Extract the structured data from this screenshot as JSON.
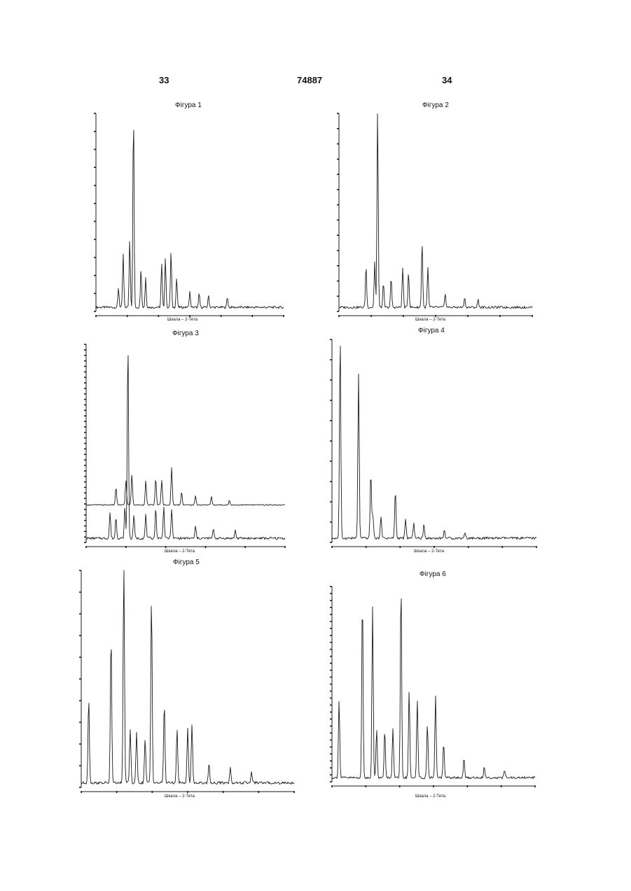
{
  "header": {
    "left_page": "33",
    "patent_number": "74887",
    "right_page": "34"
  },
  "figures": [
    {
      "id": "fig1",
      "title": "Фігура 1",
      "axis_label": "Шкала – 2-Тета"
    },
    {
      "id": "fig2",
      "title": "Фігура 2",
      "axis_label": "Шкала – 2-Тета"
    },
    {
      "id": "fig3",
      "title": "Фігура 3",
      "axis_label": "Шкала – 2-Тета"
    },
    {
      "id": "fig4",
      "title": "Фігура 4",
      "axis_label": "Шкала – 2-Тета"
    },
    {
      "id": "fig5",
      "title": "Фігура 5",
      "axis_label": "Шкала – 2-Тета"
    },
    {
      "id": "fig6",
      "title": "Фігура 6",
      "axis_label": "Шкала – 2-Тета"
    }
  ],
  "chart_data": [
    {
      "type": "line",
      "title": "Фігура 1",
      "xlabel": "Шкала – 2-Тета",
      "ylabel": "",
      "series": [
        {
          "peaks_rel": [
            [
              0.12,
              0.1
            ],
            [
              0.145,
              0.27
            ],
            [
              0.18,
              0.35
            ],
            [
              0.2,
              1.0
            ],
            [
              0.24,
              0.2
            ],
            [
              0.265,
              0.15
            ],
            [
              0.35,
              0.22
            ],
            [
              0.37,
              0.25
            ],
            [
              0.4,
              0.28
            ],
            [
              0.43,
              0.15
            ],
            [
              0.5,
              0.08
            ],
            [
              0.55,
              0.07
            ],
            [
              0.6,
              0.06
            ],
            [
              0.7,
              0.05
            ]
          ]
        }
      ]
    },
    {
      "type": "line",
      "title": "Фігура 2",
      "xlabel": "Шкала – 2-Тета",
      "ylabel": "",
      "series": [
        {
          "peaks_rel": [
            [
              0.14,
              0.21
            ],
            [
              0.185,
              0.23
            ],
            [
              0.2,
              1.0
            ],
            [
              0.23,
              0.12
            ],
            [
              0.27,
              0.15
            ],
            [
              0.33,
              0.2
            ],
            [
              0.36,
              0.18
            ],
            [
              0.43,
              0.33
            ],
            [
              0.46,
              0.2
            ],
            [
              0.55,
              0.07
            ],
            [
              0.65,
              0.05
            ],
            [
              0.72,
              0.04
            ]
          ]
        }
      ]
    },
    {
      "type": "line",
      "title": "Фігура 3",
      "xlabel": "Шкала – 2-Тета",
      "ylabel": "",
      "series": [
        {
          "peaks_rel": [
            [
              0.15,
              0.2
            ],
            [
              0.2,
              0.28
            ],
            [
              0.23,
              0.35
            ],
            [
              0.3,
              0.27
            ],
            [
              0.35,
              0.3
            ],
            [
              0.38,
              0.28
            ],
            [
              0.43,
              0.42
            ],
            [
              0.48,
              0.15
            ],
            [
              0.55,
              0.1
            ],
            [
              0.63,
              0.09
            ],
            [
              0.72,
              0.05
            ]
          ]
        },
        {
          "peaks_rel": [
            [
              0.12,
              0.13
            ],
            [
              0.15,
              0.11
            ],
            [
              0.195,
              0.16
            ],
            [
              0.21,
              1.0
            ],
            [
              0.24,
              0.12
            ],
            [
              0.3,
              0.12
            ],
            [
              0.35,
              0.15
            ],
            [
              0.39,
              0.16
            ],
            [
              0.43,
              0.15
            ],
            [
              0.55,
              0.06
            ],
            [
              0.64,
              0.05
            ],
            [
              0.75,
              0.04
            ]
          ]
        }
      ]
    },
    {
      "type": "line",
      "title": "Фігура 4",
      "xlabel": "Шкала – 2-Тета",
      "ylabel": "",
      "series": [
        {
          "peaks_rel": [
            [
              0.04,
              1.0
            ],
            [
              0.13,
              0.81
            ],
            [
              0.19,
              0.33
            ],
            [
              0.2,
              0.12
            ],
            [
              0.24,
              0.11
            ],
            [
              0.31,
              0.24
            ],
            [
              0.36,
              0.09
            ],
            [
              0.4,
              0.08
            ],
            [
              0.45,
              0.07
            ],
            [
              0.55,
              0.04
            ],
            [
              0.65,
              0.03
            ]
          ]
        }
      ]
    },
    {
      "type": "line",
      "title": "Фігура 5",
      "xlabel": "Шкала – 2-Тета",
      "ylabel": "",
      "series": [
        {
          "peaks_rel": [
            [
              0.035,
              0.39
            ],
            [
              0.14,
              0.68
            ],
            [
              0.2,
              1.0
            ],
            [
              0.23,
              0.25
            ],
            [
              0.26,
              0.23
            ],
            [
              0.3,
              0.2
            ],
            [
              0.33,
              0.86
            ],
            [
              0.39,
              0.37
            ],
            [
              0.45,
              0.25
            ],
            [
              0.5,
              0.25
            ],
            [
              0.52,
              0.27
            ],
            [
              0.6,
              0.09
            ],
            [
              0.7,
              0.07
            ],
            [
              0.8,
              0.05
            ]
          ]
        }
      ]
    },
    {
      "type": "line",
      "title": "Фігура 6",
      "xlabel": "Шкала – 2-Тета",
      "ylabel": "",
      "series": [
        {
          "peaks_rel": [
            [
              0.035,
              0.4
            ],
            [
              0.15,
              0.93
            ],
            [
              0.2,
              0.88
            ],
            [
              0.22,
              0.25
            ],
            [
              0.26,
              0.24
            ],
            [
              0.3,
              0.25
            ],
            [
              0.34,
              1.0
            ],
            [
              0.38,
              0.45
            ],
            [
              0.42,
              0.4
            ],
            [
              0.47,
              0.28
            ],
            [
              0.51,
              0.42
            ],
            [
              0.55,
              0.18
            ],
            [
              0.65,
              0.1
            ],
            [
              0.75,
              0.06
            ],
            [
              0.85,
              0.04
            ]
          ]
        }
      ]
    }
  ]
}
